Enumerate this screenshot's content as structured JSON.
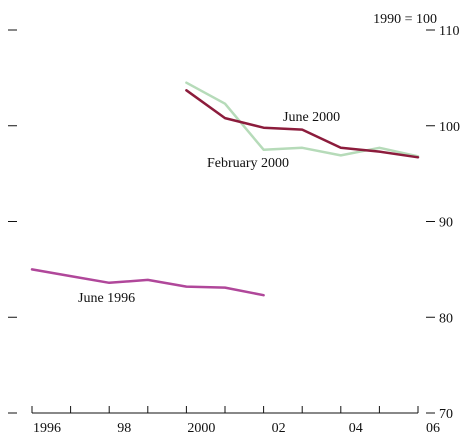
{
  "chart_data": {
    "type": "line",
    "title": "",
    "xlabel": "",
    "ylabel": "",
    "index_note": "1990 = 100",
    "xlim": [
      1996,
      2006
    ],
    "ylim": [
      70,
      110
    ],
    "x_tick_values": [
      1996,
      1998,
      2000,
      2002,
      2004,
      2006
    ],
    "x_tick_labels": [
      "1996",
      "98",
      "2000",
      "02",
      "04",
      "06"
    ],
    "y_tick_values": [
      80,
      90,
      100,
      110
    ],
    "y_tick_labels": [
      "80",
      "90",
      "100",
      "110"
    ],
    "y_tick_values_bottom": [
      70
    ],
    "y_tick_labels_bottom": [
      "70"
    ],
    "grid": false,
    "series": [
      {
        "name": "June 1996",
        "color": "#b0479a",
        "x": [
          1996,
          1997,
          1998,
          1999,
          2000,
          2001,
          2002
        ],
        "y": [
          85.0,
          84.3,
          83.6,
          83.9,
          83.2,
          83.1,
          82.3
        ]
      },
      {
        "name": "February 2000",
        "color": "#b6dbb9",
        "x": [
          2000,
          2001,
          2002,
          2003,
          2004,
          2005,
          2006
        ],
        "y": [
          104.5,
          102.3,
          97.5,
          97.7,
          96.9,
          97.7,
          96.8
        ]
      },
      {
        "name": "June 2000",
        "color": "#8c1c3c",
        "x": [
          2000,
          2001,
          2002,
          2003,
          2004,
          2005,
          2006
        ],
        "y": [
          103.7,
          100.8,
          99.8,
          99.6,
          97.7,
          97.3,
          96.7
        ]
      }
    ]
  }
}
